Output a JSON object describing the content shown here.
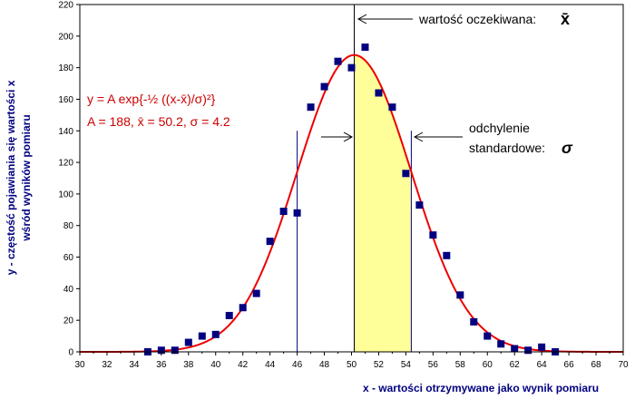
{
  "chart_data": {
    "type": "scatter",
    "title": "",
    "xlabel": "x - wartości otrzymywane jako wynik pomiaru",
    "ylabel_line1": "y - częstość pojawiania się wartości x",
    "ylabel_line2": "wśród wyników pomiaru",
    "xlim": [
      30,
      70
    ],
    "ylim": [
      0,
      220
    ],
    "xticks": [
      30,
      32,
      34,
      36,
      38,
      40,
      42,
      44,
      46,
      48,
      50,
      52,
      54,
      56,
      58,
      60,
      62,
      64,
      66,
      68,
      70
    ],
    "yticks": [
      0,
      20,
      40,
      60,
      80,
      100,
      120,
      140,
      160,
      180,
      200,
      220
    ],
    "grid": false,
    "points": {
      "x": [
        35,
        36,
        37,
        38,
        39,
        40,
        41,
        42,
        43,
        44,
        45,
        46,
        47,
        48,
        49,
        50,
        51,
        52,
        53,
        54,
        55,
        56,
        57,
        58,
        59,
        60,
        61,
        62,
        63,
        64,
        65
      ],
      "y": [
        0,
        1,
        1,
        6,
        10,
        11,
        23,
        28,
        37,
        70,
        89,
        88,
        155,
        168,
        184,
        180,
        193,
        164,
        155,
        113,
        93,
        74,
        61,
        36,
        19,
        10,
        5,
        2,
        1,
        3,
        0
      ],
      "color": "#000080"
    },
    "fit_curve": {
      "A": 188,
      "mean": 50.2,
      "sigma": 4.2,
      "color": "#ee0000"
    },
    "sigma_lines_x": [
      46.0,
      54.4
    ],
    "sigma_line_top": 140,
    "mean_line_x": 50.2,
    "shaded_region": {
      "from": 50.2,
      "to": 54.4,
      "color": "#ffff99"
    },
    "annotations": {
      "equation": "y = A exp{-½ ((x-x̄)/σ)²}",
      "params": "A = 188,   x̄ = 50.2,   σ = 4.2",
      "expected_label": "wartość oczekiwana:",
      "expected_symbol": "x̄",
      "stddev_label_line1": "odchylenie",
      "stddev_label_line2": "standardowe:",
      "stddev_symbol": "σ"
    }
  }
}
